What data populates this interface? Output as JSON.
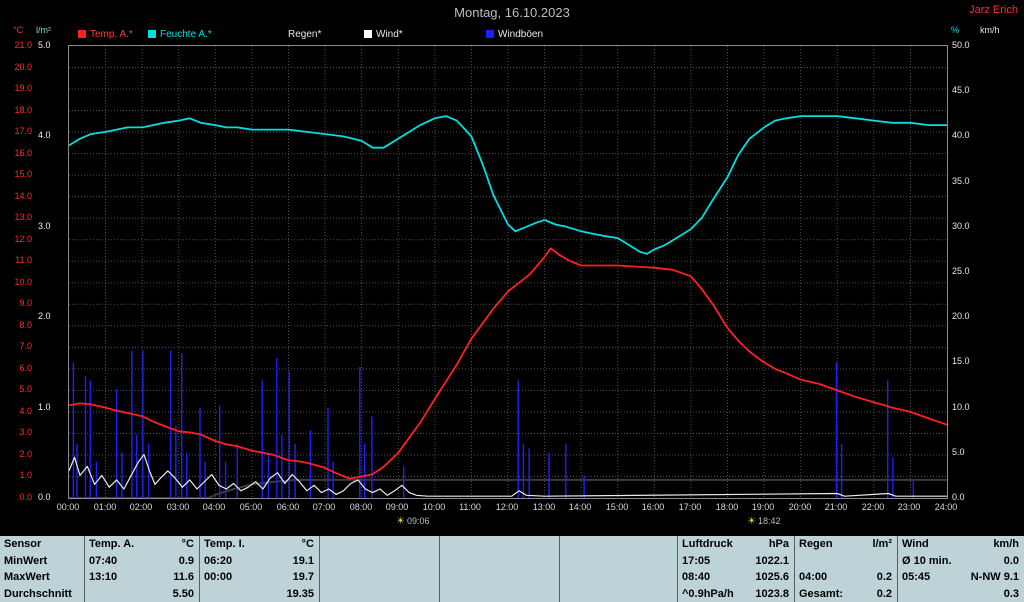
{
  "window": {
    "title": "Montag, 16.10.2023",
    "station": "Jarz Erich"
  },
  "legend": [
    {
      "label": "Temp. A.*",
      "swatch": "#ff2020",
      "text": "#ff4040"
    },
    {
      "label": "Feuchte A.*",
      "swatch": "#00e0e0",
      "text": "#00e0e0"
    },
    {
      "label": "Regen*",
      "swatch": "#000000",
      "text": "#e8e8e8"
    },
    {
      "label": "Wind*",
      "swatch": "#ffffff",
      "text": "#e8e8e8"
    },
    {
      "label": "Windböen",
      "swatch": "#1f1fff",
      "text": "#e8e8e8"
    }
  ],
  "axes": {
    "temp": {
      "unit": "°C",
      "color": "#ff2a2a",
      "ticks": [
        "21.0",
        "20.0",
        "19.0",
        "18.0",
        "17.0",
        "16.0",
        "15.0",
        "14.0",
        "13.0",
        "12.0",
        "11.0",
        "10.0",
        "9.0",
        "8.0",
        "7.0",
        "6.0",
        "5.0",
        "4.0",
        "3.0",
        "2.0",
        "1.0",
        "0.0"
      ]
    },
    "rain": {
      "unit": "l/m²",
      "color": "#f0f0f0",
      "ticks": [
        "5.0",
        "4.0",
        "3.0",
        "2.0",
        "1.0",
        "0.0"
      ]
    },
    "wind": {
      "unit_pct": "%",
      "unit_kmh": "km/h",
      "color": "#e8e8e8",
      "ticks": [
        "50.0",
        "45.0",
        "40.0",
        "35.0",
        "30.0",
        "25.0",
        "20.0",
        "15.0",
        "10.0",
        "5.0",
        "0.0"
      ]
    },
    "time": {
      "ticks": [
        "00:00",
        "01:00",
        "02:00",
        "03:00",
        "04:00",
        "05:00",
        "06:00",
        "07:00",
        "08:00",
        "09:00",
        "10:00",
        "11:00",
        "12:00",
        "13:00",
        "14:00",
        "15:00",
        "16:00",
        "17:00",
        "18:00",
        "19:00",
        "20:00",
        "21:00",
        "22:00",
        "23:00",
        "24:00"
      ]
    }
  },
  "sun_markers": [
    {
      "time": "09:06"
    },
    {
      "time": "18:42"
    }
  ],
  "chart_data": {
    "type": "line",
    "title": "Montag, 16.10.2023",
    "grid": true,
    "legend_position": "top",
    "x_range": [
      0,
      24
    ],
    "x_tick_step_hours": 1,
    "series": [
      {
        "name": "Regen",
        "unit": "l/m²",
        "color": "#3c3c3c",
        "axis_min": 0,
        "axis_max": 5,
        "render": "line",
        "stroke_width": 2,
        "points": [
          [
            0,
            0
          ],
          [
            3.8,
            0
          ],
          [
            4.1,
            0.05
          ],
          [
            4.5,
            0.1
          ],
          [
            5,
            0.15
          ],
          [
            5.6,
            0.18
          ],
          [
            6.2,
            0.2
          ],
          [
            24,
            0.2
          ]
        ]
      },
      {
        "name": "Windböen",
        "unit": "km/h",
        "color": "#1f1fff",
        "axis_min": 0,
        "axis_max": 50,
        "render": "spikes",
        "stroke_width": 1.4,
        "points": [
          [
            0.12,
            15
          ],
          [
            0.22,
            6
          ],
          [
            0.45,
            13.5
          ],
          [
            0.58,
            13
          ],
          [
            0.75,
            4
          ],
          [
            1.3,
            12
          ],
          [
            1.45,
            5
          ],
          [
            1.72,
            16.3
          ],
          [
            1.85,
            7
          ],
          [
            2.02,
            16.3
          ],
          [
            2.18,
            6
          ],
          [
            2.78,
            16.3
          ],
          [
            2.92,
            8
          ],
          [
            3.08,
            16
          ],
          [
            3.22,
            5
          ],
          [
            3.58,
            10
          ],
          [
            3.72,
            4
          ],
          [
            4.12,
            10.2
          ],
          [
            4.28,
            4
          ],
          [
            4.6,
            6
          ],
          [
            5.28,
            13
          ],
          [
            5.45,
            5
          ],
          [
            5.68,
            15.5
          ],
          [
            5.82,
            7
          ],
          [
            6.02,
            14
          ],
          [
            6.18,
            6
          ],
          [
            6.6,
            7.5
          ],
          [
            7.08,
            10
          ],
          [
            7.22,
            4
          ],
          [
            7.95,
            14.5
          ],
          [
            8.08,
            6
          ],
          [
            8.28,
            9
          ],
          [
            9.15,
            3.5
          ],
          [
            12.28,
            13
          ],
          [
            12.42,
            6
          ],
          [
            12.58,
            5.5
          ],
          [
            13.12,
            5
          ],
          [
            13.58,
            6
          ],
          [
            14.08,
            2.5
          ],
          [
            20.98,
            15
          ],
          [
            21.12,
            6
          ],
          [
            22.38,
            13
          ],
          [
            22.52,
            4.5
          ],
          [
            23.08,
            2
          ]
        ]
      },
      {
        "name": "Wind",
        "unit": "km/h",
        "color": "#ececec",
        "axis_min": 0,
        "axis_max": 50,
        "render": "line",
        "stroke_width": 1.2,
        "points": [
          [
            0,
            3
          ],
          [
            0.15,
            4.5
          ],
          [
            0.3,
            2.5
          ],
          [
            0.5,
            3.5
          ],
          [
            0.7,
            1.5
          ],
          [
            0.9,
            2.5
          ],
          [
            1.1,
            1.2
          ],
          [
            1.3,
            2
          ],
          [
            1.5,
            1
          ],
          [
            1.7,
            2.5
          ],
          [
            1.9,
            4
          ],
          [
            2.05,
            4.8
          ],
          [
            2.2,
            3
          ],
          [
            2.35,
            1.5
          ],
          [
            2.5,
            2.2
          ],
          [
            2.7,
            3
          ],
          [
            2.9,
            2.2
          ],
          [
            3.1,
            1.2
          ],
          [
            3.3,
            2
          ],
          [
            3.5,
            1
          ],
          [
            3.7,
            1.8
          ],
          [
            3.9,
            2.6
          ],
          [
            4.1,
            1.4
          ],
          [
            4.3,
            1
          ],
          [
            4.5,
            1.6
          ],
          [
            4.7,
            0.8
          ],
          [
            4.9,
            1.2
          ],
          [
            5.1,
            1.8
          ],
          [
            5.3,
            1
          ],
          [
            5.5,
            2.2
          ],
          [
            5.7,
            2.8
          ],
          [
            5.9,
            1.6
          ],
          [
            6.1,
            2.6
          ],
          [
            6.3,
            1.8
          ],
          [
            6.5,
            0.8
          ],
          [
            6.7,
            1.4
          ],
          [
            6.9,
            0.6
          ],
          [
            7.1,
            1
          ],
          [
            7.3,
            0.4
          ],
          [
            7.5,
            0.8
          ],
          [
            7.7,
            1.6
          ],
          [
            7.9,
            2
          ],
          [
            8.1,
            1
          ],
          [
            8.3,
            0.6
          ],
          [
            8.5,
            1
          ],
          [
            8.7,
            0.3
          ],
          [
            8.9,
            0.8
          ],
          [
            9.1,
            1.4
          ],
          [
            9.3,
            0.6
          ],
          [
            9.5,
            0.3
          ],
          [
            9.8,
            0.2
          ],
          [
            10.2,
            0.2
          ],
          [
            12.1,
            0.2
          ],
          [
            12.3,
            0.8
          ],
          [
            12.5,
            0.3
          ],
          [
            13,
            0.2
          ],
          [
            21,
            0.5
          ],
          [
            21.2,
            0.2
          ],
          [
            22.4,
            0.5
          ],
          [
            22.6,
            0.2
          ],
          [
            24,
            0.2
          ]
        ]
      },
      {
        "name": "Feuchte A.",
        "unit": "%",
        "color": "#00e0e0",
        "axis_min": 0,
        "axis_max": 100,
        "render": "line",
        "stroke_width": 1.8,
        "points": [
          [
            0,
            78
          ],
          [
            0.3,
            79.5
          ],
          [
            0.6,
            80.5
          ],
          [
            1,
            81
          ],
          [
            1.3,
            81.5
          ],
          [
            1.6,
            82
          ],
          [
            2,
            82
          ],
          [
            2.3,
            82.5
          ],
          [
            2.6,
            83
          ],
          [
            3,
            83.5
          ],
          [
            3.3,
            84
          ],
          [
            3.6,
            83
          ],
          [
            4,
            82.5
          ],
          [
            4.3,
            82
          ],
          [
            4.6,
            82
          ],
          [
            5,
            81.5
          ],
          [
            5.5,
            81.5
          ],
          [
            6,
            81.5
          ],
          [
            6.5,
            81
          ],
          [
            7,
            80.5
          ],
          [
            7.5,
            80
          ],
          [
            8,
            79
          ],
          [
            8.3,
            77.5
          ],
          [
            8.6,
            77.5
          ],
          [
            9,
            79.5
          ],
          [
            9.3,
            81
          ],
          [
            9.6,
            82.5
          ],
          [
            10,
            84
          ],
          [
            10.3,
            84.5
          ],
          [
            10.6,
            83.5
          ],
          [
            11,
            80
          ],
          [
            11.3,
            74
          ],
          [
            11.6,
            67
          ],
          [
            12,
            60.5
          ],
          [
            12.2,
            59
          ],
          [
            12.5,
            60
          ],
          [
            12.8,
            61
          ],
          [
            13,
            61.5
          ],
          [
            13.3,
            60.5
          ],
          [
            13.6,
            60
          ],
          [
            14,
            59
          ],
          [
            14.3,
            58.5
          ],
          [
            14.6,
            58
          ],
          [
            15,
            57.5
          ],
          [
            15.3,
            56
          ],
          [
            15.6,
            54.5
          ],
          [
            15.8,
            54
          ],
          [
            16,
            55
          ],
          [
            16.3,
            56
          ],
          [
            16.6,
            57.5
          ],
          [
            17,
            59.5
          ],
          [
            17.3,
            62
          ],
          [
            17.6,
            66
          ],
          [
            18,
            71
          ],
          [
            18.3,
            76
          ],
          [
            18.6,
            79.5
          ],
          [
            19,
            82
          ],
          [
            19.3,
            83.5
          ],
          [
            19.6,
            84
          ],
          [
            20,
            84.5
          ],
          [
            20.5,
            84.5
          ],
          [
            21,
            84.5
          ],
          [
            21.5,
            84
          ],
          [
            22,
            83.5
          ],
          [
            22.5,
            83
          ],
          [
            23,
            83
          ],
          [
            23.5,
            82.5
          ],
          [
            24,
            82.5
          ]
        ]
      },
      {
        "name": "Temp. A.",
        "unit": "°C",
        "color": "#ff2020",
        "axis_min": 0,
        "axis_max": 21,
        "render": "line",
        "stroke_width": 1.8,
        "points": [
          [
            0,
            4.3
          ],
          [
            0.3,
            4.4
          ],
          [
            0.6,
            4.35
          ],
          [
            1,
            4.2
          ],
          [
            1.3,
            4.05
          ],
          [
            1.6,
            3.95
          ],
          [
            2,
            3.8
          ],
          [
            2.3,
            3.55
          ],
          [
            2.6,
            3.35
          ],
          [
            3,
            3.1
          ],
          [
            3.3,
            3.05
          ],
          [
            3.6,
            2.95
          ],
          [
            4,
            2.65
          ],
          [
            4.3,
            2.5
          ],
          [
            4.6,
            2.4
          ],
          [
            5,
            2.2
          ],
          [
            5.3,
            2.1
          ],
          [
            5.6,
            2
          ],
          [
            6,
            1.75
          ],
          [
            6.3,
            1.7
          ],
          [
            6.6,
            1.6
          ],
          [
            7,
            1.4
          ],
          [
            7.3,
            1.15
          ],
          [
            7.67,
            0.9
          ],
          [
            8,
            1
          ],
          [
            8.3,
            1.1
          ],
          [
            8.6,
            1.45
          ],
          [
            9,
            2.1
          ],
          [
            9.3,
            2.8
          ],
          [
            9.6,
            3.5
          ],
          [
            10,
            4.6
          ],
          [
            10.3,
            5.4
          ],
          [
            10.6,
            6.2
          ],
          [
            11,
            7.4
          ],
          [
            11.3,
            8.1
          ],
          [
            11.6,
            8.8
          ],
          [
            12,
            9.6
          ],
          [
            12.3,
            10
          ],
          [
            12.6,
            10.4
          ],
          [
            13,
            11.2
          ],
          [
            13.17,
            11.6
          ],
          [
            13.4,
            11.3
          ],
          [
            13.7,
            11
          ],
          [
            14,
            10.8
          ],
          [
            14.5,
            10.8
          ],
          [
            15,
            10.8
          ],
          [
            15.5,
            10.75
          ],
          [
            16,
            10.7
          ],
          [
            16.5,
            10.6
          ],
          [
            17,
            10.3
          ],
          [
            17.3,
            9.7
          ],
          [
            17.6,
            9
          ],
          [
            18,
            7.9
          ],
          [
            18.3,
            7.3
          ],
          [
            18.6,
            6.8
          ],
          [
            19,
            6.3
          ],
          [
            19.3,
            6
          ],
          [
            19.6,
            5.8
          ],
          [
            20,
            5.5
          ],
          [
            20.5,
            5.3
          ],
          [
            21,
            5
          ],
          [
            21.5,
            4.7
          ],
          [
            22,
            4.45
          ],
          [
            22.5,
            4.2
          ],
          [
            23,
            4
          ],
          [
            23.5,
            3.7
          ],
          [
            24,
            3.4
          ]
        ]
      }
    ]
  },
  "table": {
    "corner": "Sensor",
    "row_labels": [
      "MinWert",
      "MaxWert",
      "Durchschnitt"
    ],
    "columns": [
      {
        "name": "Temp. A.",
        "unit": "°C",
        "min": [
          "07:40",
          "0.9"
        ],
        "max": [
          "13:10",
          "11.6"
        ],
        "avg": [
          "",
          "5.50"
        ]
      },
      {
        "name": "Temp. I.",
        "unit": "°C",
        "min": [
          "06:20",
          "19.1"
        ],
        "max": [
          "00:00",
          "19.7"
        ],
        "avg": [
          "",
          "19.35"
        ]
      },
      {
        "name": "",
        "unit": "",
        "min": [
          "",
          ""
        ],
        "max": [
          "",
          ""
        ],
        "avg": [
          "",
          ""
        ]
      },
      {
        "name": "",
        "unit": "",
        "min": [
          "",
          ""
        ],
        "max": [
          "",
          ""
        ],
        "avg": [
          "",
          ""
        ]
      },
      {
        "name": "",
        "unit": "",
        "min": [
          "",
          ""
        ],
        "max": [
          "",
          ""
        ],
        "avg": [
          "",
          ""
        ]
      },
      {
        "name": "Luftdruck",
        "unit": "hPa",
        "min": [
          "17:05",
          "1022.1"
        ],
        "max": [
          "08:40",
          "1025.6"
        ],
        "avg": [
          "^0.9hPa/h",
          "1023.8"
        ]
      },
      {
        "name": "Regen",
        "unit": "l/m²",
        "min": [
          "",
          ""
        ],
        "max": [
          "04:00",
          "0.2"
        ],
        "avg": [
          "Gesamt:",
          "0.2"
        ]
      },
      {
        "name": "Wind",
        "unit": "km/h",
        "min": [
          "Ø 10 min.",
          "0.0"
        ],
        "max": [
          "05:45",
          "N-NW 9.1"
        ],
        "avg": [
          "",
          "0.3"
        ]
      }
    ]
  }
}
